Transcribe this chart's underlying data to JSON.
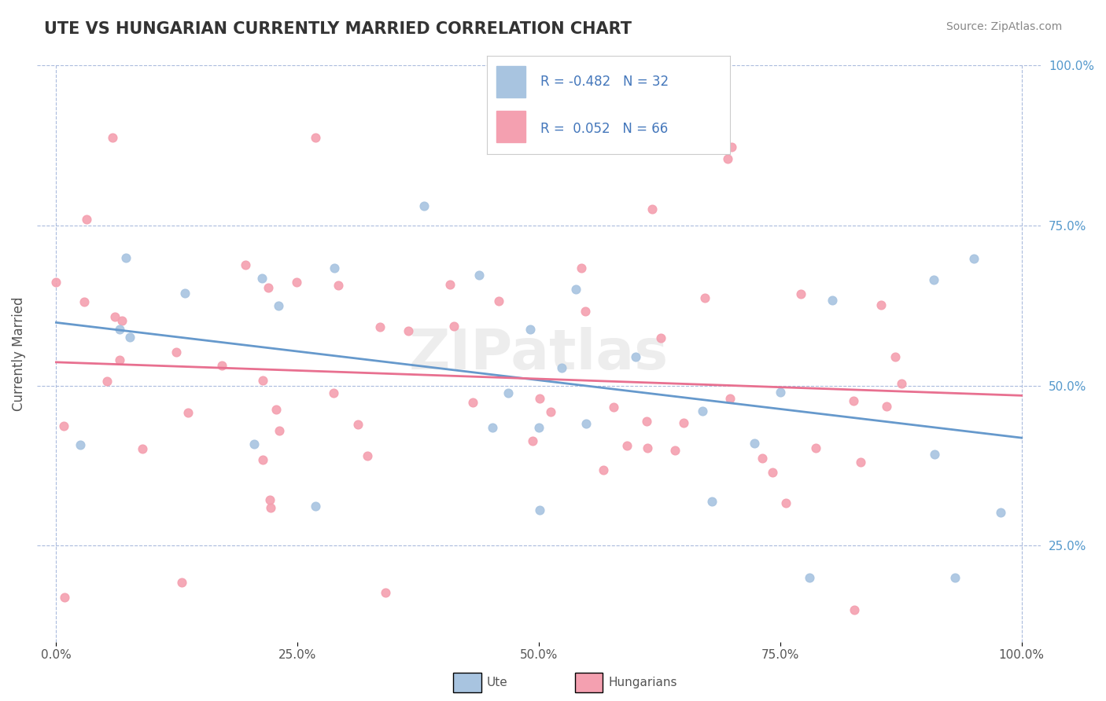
{
  "title": "UTE VS HUNGARIAN CURRENTLY MARRIED CORRELATION CHART",
  "source": "Source: ZipAtlas.com",
  "xlabel": "",
  "ylabel": "Currently Married",
  "ute_R": -0.482,
  "ute_N": 32,
  "hung_R": 0.052,
  "hung_N": 66,
  "ute_color": "#a8c4e0",
  "hung_color": "#f4a0b0",
  "ute_line_color": "#6699cc",
  "hung_line_color": "#e87090",
  "title_color": "#333333",
  "legend_text_color": "#4477bb",
  "background_color": "#ffffff",
  "watermark": "ZIPatlas",
  "right_tick_color": "#5599cc"
}
